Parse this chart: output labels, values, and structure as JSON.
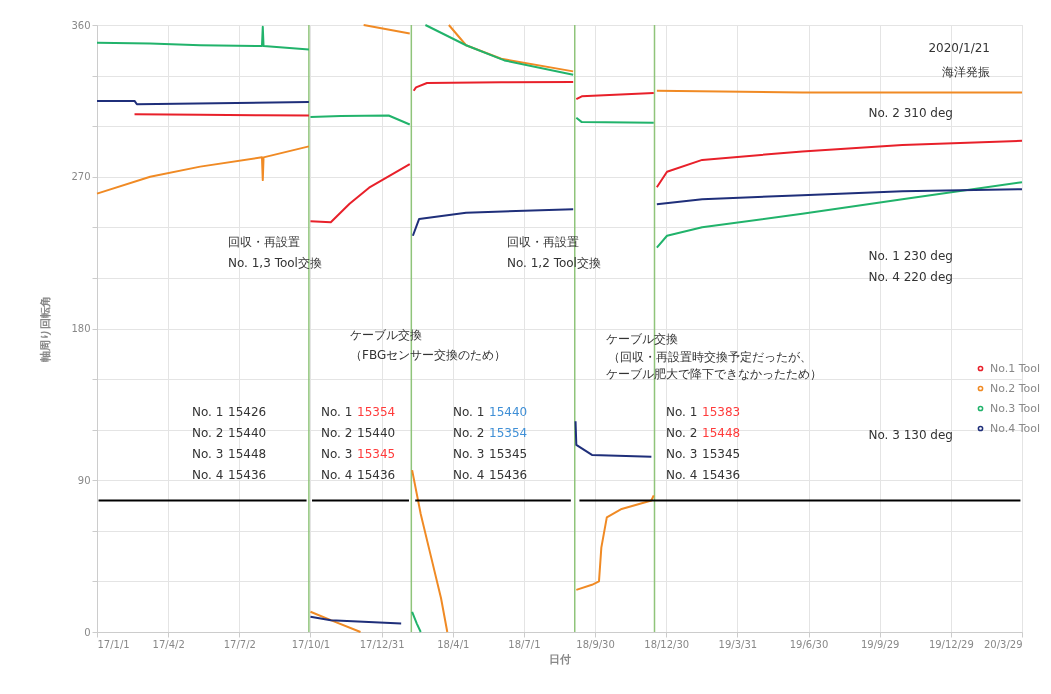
{
  "chart_data": {
    "type": "line",
    "xlabel": "日付",
    "ylabel": "軸周り回転角",
    "xlim": [
      "2017-01-01",
      "2020-03-29"
    ],
    "xticks": [
      {
        "value": "2017-01-01",
        "label": "17/1/1"
      },
      {
        "value": "2017-04-02",
        "label": "17/4/2"
      },
      {
        "value": "2017-07-02",
        "label": "17/7/2"
      },
      {
        "value": "2017-10-01",
        "label": "17/10/1"
      },
      {
        "value": "2017-12-31",
        "label": "17/12/31"
      },
      {
        "value": "2018-04-01",
        "label": "18/4/1"
      },
      {
        "value": "2018-07-01",
        "label": "18/7/1"
      },
      {
        "value": "2018-09-30",
        "label": "18/9/30"
      },
      {
        "value": "2018-12-30",
        "label": "18/12/30"
      },
      {
        "value": "2019-03-31",
        "label": "19/3/31"
      },
      {
        "value": "2019-06-30",
        "label": "19/6/30"
      },
      {
        "value": "2019-09-29",
        "label": "19/9/29"
      },
      {
        "value": "2019-12-29",
        "label": "19/12/29"
      },
      {
        "value": "2020-03-29",
        "label": "20/3/29"
      }
    ],
    "ylim": [
      0,
      360
    ],
    "yticks": [
      0,
      {
        "value": 30,
        "label": null
      },
      {
        "value": 60,
        "label": null
      },
      90,
      {
        "value": 120,
        "label": null
      },
      {
        "value": 150,
        "label": null
      },
      180,
      {
        "value": 210,
        "label": null
      },
      {
        "value": 240,
        "label": null
      },
      270,
      {
        "value": 300,
        "label": null
      },
      {
        "value": 330,
        "label": null
      },
      360
    ],
    "grid": true,
    "legend": "right",
    "series": [
      {
        "name": "No.1 Tool",
        "color": "#e8202a",
        "x": [
          "2017-02-18",
          "2017-05-13",
          "2017-08-01",
          "2017-09-29",
          "2017-09-30",
          "2017-10-01",
          "2017-10-27",
          "2017-11-20",
          "2017-12-15",
          "2018-02-05",
          "2018-02-06",
          "2018-02-10",
          "2018-02-13",
          "2018-02-27",
          "2018-06-02",
          "2018-09-02",
          "2018-09-04",
          "2018-09-06",
          "2018-09-13",
          "2018-12-14",
          "2018-12-16",
          "2018-12-18",
          "2018-12-31",
          "2019-02-14",
          "2019-06-22",
          "2019-10-28",
          "2020-03-29"
        ],
        "values": [
          307,
          306.8,
          306.5,
          306.3,
          null,
          243.6,
          243,
          254,
          263.5,
          277.5,
          null,
          321,
          323,
          325.6,
          326,
          326.2,
          null,
          316,
          317.7,
          319.7,
          null,
          263.8,
          273,
          280,
          285,
          288.8,
          291.3
        ]
      },
      {
        "name": "No.2 Tool",
        "color": "#f08a24",
        "x": [
          "2017-01-01",
          "2017-03-10",
          "2017-05-13",
          "2017-07-31",
          "2017-08-01",
          "2017-08-02",
          "2017-09-29",
          "2017-09-30",
          "2017-10-01",
          "2017-10-27",
          "2017-12-04",
          "2017-12-06",
          "2017-12-08",
          "2018-02-05",
          "2018-02-06",
          "2018-02-08",
          "2018-02-19",
          "2018-03-04",
          "2018-03-17",
          "2018-03-25",
          "2018-03-26",
          "2018-03-27",
          "2018-04-18",
          "2018-06-02",
          "2018-09-02",
          "2018-09-04",
          "2018-09-06",
          "2018-09-26",
          "2018-10-05",
          "2018-10-08",
          "2018-10-15",
          "2018-11-03",
          "2018-12-11",
          "2018-12-14",
          "2018-12-16",
          "2018-12-18",
          "2019-06-22",
          "2020-03-29"
        ],
        "values": [
          260,
          270,
          276,
          281.5,
          268,
          281.5,
          288,
          null,
          12,
          7,
          0,
          null,
          360,
          355,
          null,
          96,
          70,
          45,
          20,
          0,
          null,
          360,
          348,
          340,
          332.5,
          null,
          25,
          28,
          30,
          50,
          68,
          73,
          78,
          81,
          null,
          321,
          320,
          320
        ]
      },
      {
        "name": "No.3 Tool",
        "color": "#21b36b",
        "x": [
          "2017-01-01",
          "2017-03-10",
          "2017-05-13",
          "2017-07-31",
          "2017-08-01",
          "2017-08-02",
          "2017-09-29",
          "2017-09-30",
          "2017-10-01",
          "2017-11-09",
          "2018-01-09",
          "2018-02-05",
          "2018-02-06",
          "2018-02-08",
          "2018-02-14",
          "2018-02-19",
          "2018-02-22",
          "2018-02-25",
          "2018-04-18",
          "2018-06-06",
          "2018-09-02",
          "2018-09-04",
          "2018-09-06",
          "2018-09-13",
          "2018-12-14",
          "2018-12-16",
          "2018-12-18",
          "2018-12-31",
          "2019-02-14",
          "2019-06-22",
          "2019-10-28",
          "2020-03-29"
        ],
        "values": [
          349.5,
          349,
          348,
          347.5,
          359,
          347.5,
          345.5,
          null,
          305.5,
          306,
          306.3,
          301,
          null,
          12,
          5,
          0,
          null,
          360,
          348,
          339,
          330.5,
          null,
          305,
          302.4,
          302,
          null,
          228,
          235,
          240,
          248,
          256.7,
          266.8
        ]
      },
      {
        "name": "No.4 Tool",
        "color": "#1f2f7a",
        "x": [
          "2017-01-01",
          "2017-02-18",
          "2017-02-21",
          "2017-09-29",
          "2017-09-30",
          "2017-10-01",
          "2017-10-27",
          "2018-01-25",
          "2018-02-06",
          "2018-02-09",
          "2018-02-17",
          "2018-04-18",
          "2018-09-02",
          "2018-09-04",
          "2018-09-05",
          "2018-09-06",
          "2018-09-26",
          "2018-12-11",
          "2018-12-16",
          "2018-12-18",
          "2019-02-14",
          "2019-06-22",
          "2019-10-28",
          "2020-03-29"
        ],
        "values": [
          315,
          315,
          313,
          314.3,
          null,
          9,
          7,
          5,
          null,
          235,
          245,
          248.7,
          250.7,
          null,
          125,
          111,
          105,
          104,
          null,
          253.7,
          256.7,
          259,
          261.4,
          262.6
        ]
      },
      {
        "color": "#000000",
        "x": [
          "2017-01-03",
          "2017-09-26",
          "2017-09-30",
          "2017-10-03",
          "2018-02-04",
          "2018-02-08",
          "2018-02-12",
          "2018-08-30",
          "2018-09-05",
          "2018-09-10",
          "2020-03-27"
        ],
        "values": [
          78,
          78,
          null,
          78,
          78,
          null,
          78,
          78,
          null,
          78,
          78
        ]
      }
    ],
    "ref_lines": [
      {
        "axis": "x",
        "value": "2017-09-29",
        "color": "#8fc47a"
      },
      {
        "axis": "x",
        "value": "2018-02-07",
        "color": "#8fc47a"
      },
      {
        "axis": "x",
        "value": "2018-09-04",
        "color": "#8fc47a"
      },
      {
        "axis": "x",
        "value": "2018-12-15",
        "color": "#8fc47a"
      }
    ],
    "annotations": [
      "2020/1/21",
      "海洋発振",
      "No. 2 310 deg",
      "No. 1 230 deg",
      "No. 4 220 deg",
      "No. 3 130 deg",
      "回収・再設置",
      "No. 1,3 Tool交換",
      "ケーブル交換",
      "（FBGセンサー交換のため）",
      "回収・再設置",
      "No. 1,2 Tool交換",
      "ケーブル交換",
      "（回収・再設置時交換予定だったが、",
      "ケーブル肥大で降下できなかったため）",
      "No. 1",
      "15426",
      "No. 2",
      "15440",
      "No. 3",
      "15448",
      "No. 4",
      "15436",
      "No. 1",
      "15354",
      "No. 2",
      "15440",
      "No. 3",
      "15345",
      "No. 4",
      "15436",
      "No. 1",
      "15440",
      "No. 2",
      "15354",
      "No. 3",
      "15345",
      "No. 4",
      "15436",
      "No. 1",
      "15383",
      "No. 2",
      "15448",
      "No. 3",
      "15345",
      "No. 4",
      "15436"
    ]
  }
}
